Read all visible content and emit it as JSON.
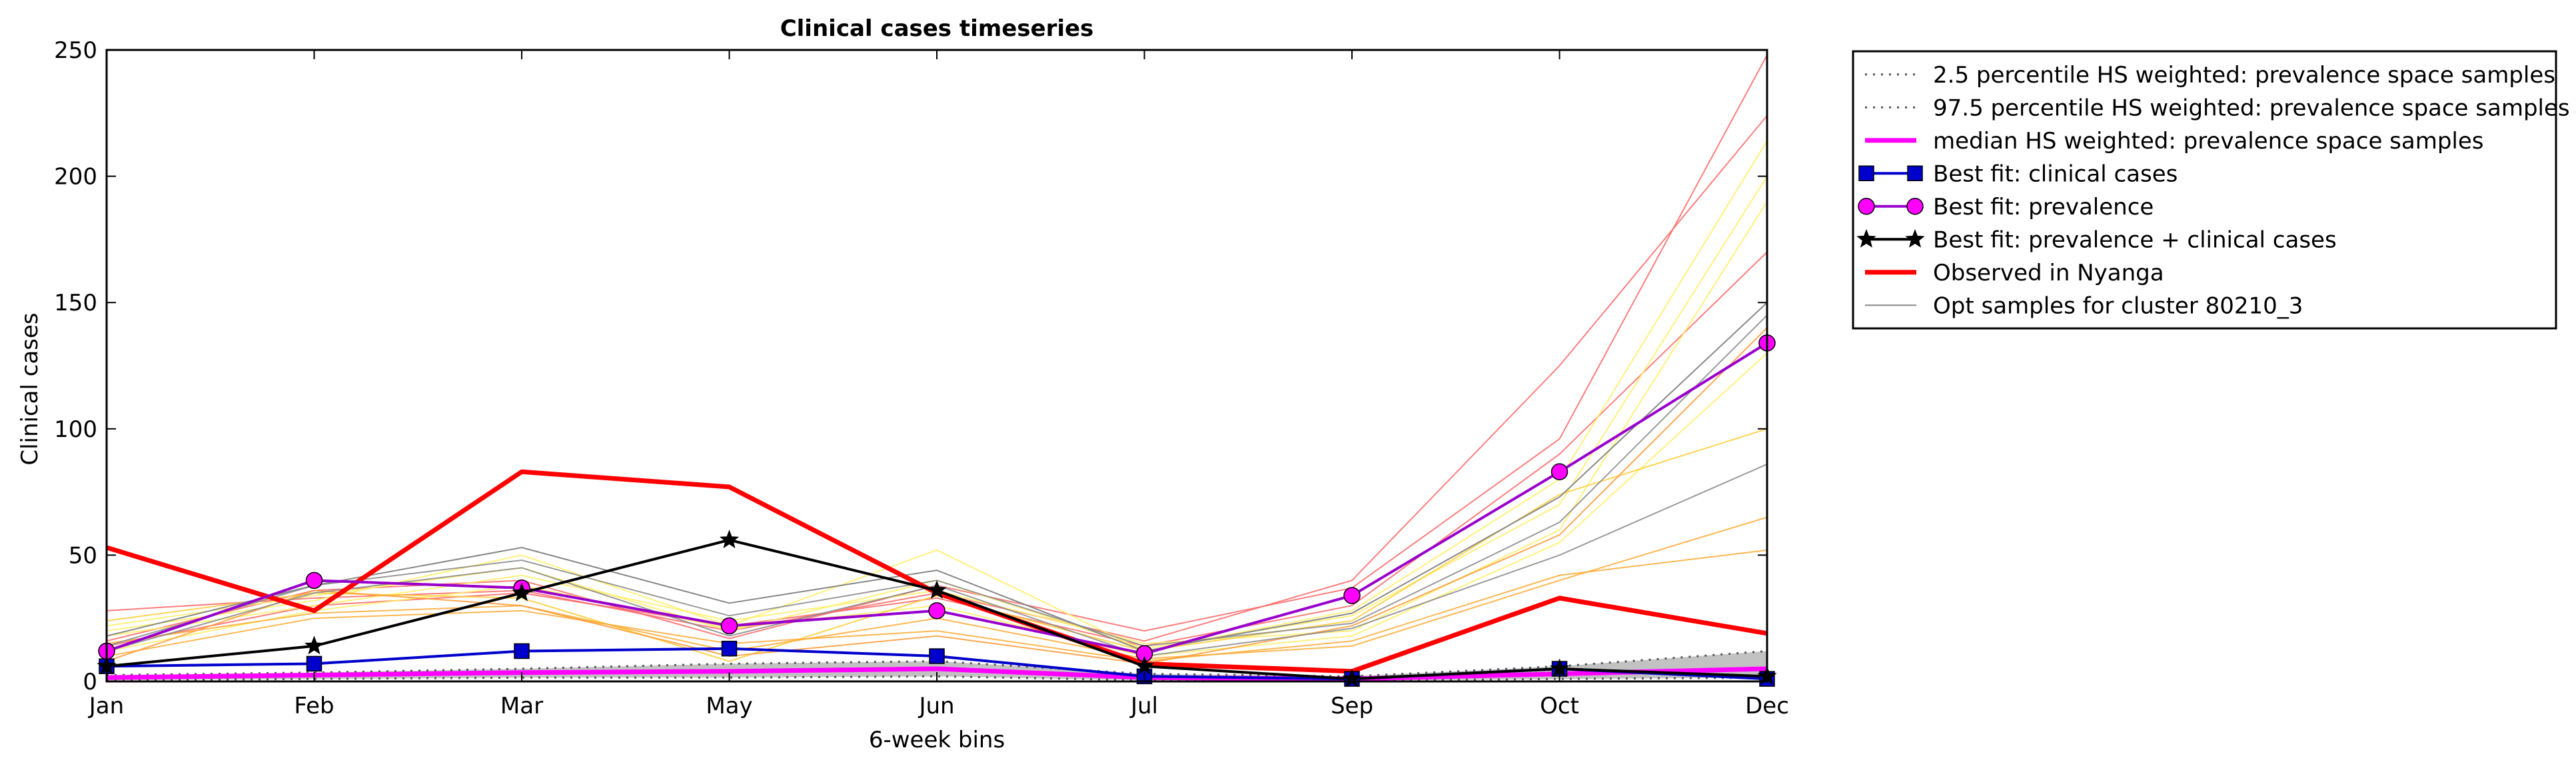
{
  "chart_data": {
    "type": "line",
    "title": "Clinical cases timeseries",
    "xlabel": "6-week bins",
    "ylabel": "Clinical cases",
    "categories": [
      "Jan",
      "Feb",
      "Mar",
      "May",
      "Jun",
      "Jul",
      "Sep",
      "Oct",
      "Dec"
    ],
    "ylim": [
      0,
      250
    ],
    "yticks": [
      0,
      50,
      100,
      150,
      200,
      250
    ],
    "grid": false,
    "legend_position": "outside-right-top",
    "series": [
      {
        "name": "2.5 percentile HS weighted: prevalence space samples",
        "style": "dotted",
        "color": "#555555",
        "values": [
          0.5,
          1,
          1.5,
          1.5,
          2,
          0.5,
          0.3,
          1,
          1.5
        ]
      },
      {
        "name": "97.5 percentile HS weighted: prevalence space samples",
        "style": "dotted",
        "color": "#555555",
        "values": [
          2.5,
          3.5,
          5,
          7,
          8,
          3,
          2,
          6,
          12
        ]
      },
      {
        "name": "median HS weighted: prevalence space samples",
        "style": "solid",
        "color": "#ff00ff",
        "values": [
          1.5,
          2.5,
          3.5,
          4,
          5,
          1.5,
          1,
          3,
          5
        ]
      },
      {
        "name": "Best fit: clinical cases",
        "style": "solid",
        "color": "#0000cc",
        "marker": "square",
        "values": [
          6,
          7,
          12,
          13,
          10,
          2,
          1,
          5,
          1
        ]
      },
      {
        "name": "Best fit: prevalence",
        "style": "solid",
        "color": "#9900cc",
        "marker": "circle",
        "values": [
          12,
          40,
          37,
          22,
          28,
          11,
          34,
          83,
          134
        ]
      },
      {
        "name": "Best fit: prevalence + clinical cases",
        "style": "solid",
        "color": "#000000",
        "marker": "star",
        "values": [
          6,
          14,
          35,
          56,
          36,
          6,
          1,
          5,
          2
        ]
      },
      {
        "name": "Observed in Nyanga",
        "style": "solid-thick",
        "color": "#ff0000",
        "values": [
          53,
          28,
          83,
          77,
          35,
          7,
          4,
          33,
          19
        ]
      },
      {
        "name": "Opt samples for cluster 80210_3",
        "style": "solid-thin",
        "color": "#888888",
        "values": [
          18,
          38,
          53,
          31,
          44,
          12,
          27,
          73,
          150
        ]
      }
    ],
    "sample_lines": [
      {
        "color": "#ff6666",
        "values": [
          16,
          36,
          40,
          17,
          38,
          20,
          37,
          96,
          248
        ]
      },
      {
        "color": "#ff6666",
        "values": [
          28,
          33,
          36,
          20,
          35,
          16,
          40,
          125,
          224
        ]
      },
      {
        "color": "#ff6666",
        "values": [
          14,
          30,
          35,
          22,
          33,
          14,
          30,
          90,
          170
        ]
      },
      {
        "color": "#ffee66",
        "values": [
          20,
          32,
          50,
          22,
          52,
          12,
          28,
          80,
          214
        ]
      },
      {
        "color": "#ffee66",
        "values": [
          22,
          34,
          45,
          20,
          40,
          13,
          26,
          70,
          200
        ]
      },
      {
        "color": "#ffee66",
        "values": [
          18,
          30,
          42,
          24,
          36,
          15,
          20,
          60,
          190
        ]
      },
      {
        "color": "#ffee66",
        "values": [
          12,
          28,
          38,
          21,
          30,
          10,
          18,
          55,
          130
        ]
      },
      {
        "color": "#ffcc33",
        "values": [
          24,
          35,
          33,
          8,
          34,
          12,
          24,
          74,
          100
        ]
      },
      {
        "color": "#ffaa33",
        "values": [
          15,
          27,
          30,
          12,
          25,
          9,
          14,
          40,
          65
        ]
      },
      {
        "color": "#ffaa33",
        "values": [
          10,
          25,
          28,
          15,
          20,
          8,
          16,
          42,
          52
        ]
      },
      {
        "color": "#ff9933",
        "values": [
          8,
          36,
          30,
          10,
          18,
          7,
          22,
          58,
          140
        ]
      },
      {
        "color": "#888888",
        "values": [
          14,
          38,
          48,
          26,
          40,
          14,
          23,
          63,
          145
        ]
      },
      {
        "color": "#888888",
        "values": [
          12,
          35,
          45,
          18,
          38,
          10,
          21,
          50,
          86
        ]
      }
    ]
  }
}
